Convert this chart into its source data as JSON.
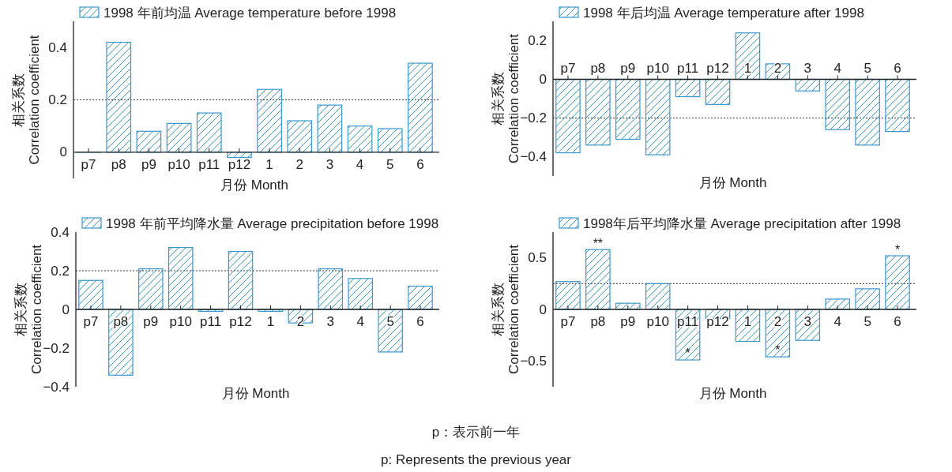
{
  "chart_data": [
    {
      "type": "bar",
      "ylabel": "相关系数\nCorrelation coefficient",
      "xlabel": "月份 Month",
      "categories": [
        "p7",
        "p8",
        "p9",
        "p10",
        "p11",
        "p12",
        "1",
        "2",
        "3",
        "4",
        "5",
        "6"
      ],
      "legend": "top",
      "ylim": [
        -0.1,
        0.5
      ],
      "yticks": [
        0,
        0.2,
        0.4
      ],
      "ref_lines": [
        {
          "axis": "y",
          "value": 0.2,
          "line_style": "dotted",
          "color": "#333333"
        }
      ],
      "series": [
        {
          "name": "1998 年前均温 Average temperature before 1998",
          "color": "#3a97cc",
          "values": [
            0,
            0.42,
            0.08,
            0.11,
            0.15,
            -0.02,
            0.24,
            0.12,
            0.18,
            0.1,
            0.09,
            0.34
          ]
        }
      ]
    },
    {
      "type": "bar",
      "ylabel": "相关系数\nCorrelation coefficient",
      "xlabel": "月份 Month",
      "categories": [
        "p7",
        "p8",
        "p9",
        "p10",
        "p11",
        "p12",
        "1",
        "2",
        "3",
        "4",
        "5",
        "6"
      ],
      "legend": "top",
      "ylim": [
        -0.5,
        0.3
      ],
      "yticks": [
        {
          "value": -0.4,
          "label": "−0.4"
        },
        {
          "value": -0.2,
          "label": "−0.2"
        },
        0,
        0.2
      ],
      "ref_lines": [
        {
          "axis": "y",
          "value": -0.2,
          "line_style": "dotted",
          "color": "#333333"
        }
      ],
      "series": [
        {
          "name": "1998 年后均温 Average temperature after 1998",
          "color": "#3a97cc",
          "values": [
            -0.38,
            -0.34,
            -0.31,
            -0.39,
            -0.09,
            -0.13,
            0.24,
            0.08,
            -0.06,
            -0.26,
            -0.34,
            -0.27
          ]
        }
      ]
    },
    {
      "type": "bar",
      "ylabel": "相关系数\nCorrelation coefficient",
      "xlabel": "月份 Month",
      "categories": [
        "p7",
        "p8",
        "p9",
        "p10",
        "p11",
        "p12",
        "1",
        "2",
        "3",
        "4",
        "5",
        "6"
      ],
      "legend": "top",
      "ylim": [
        -0.4,
        0.4
      ],
      "yticks": [
        {
          "value": -0.4,
          "label": "−0.4"
        },
        {
          "value": -0.2,
          "label": "−0.2"
        },
        0,
        0.2,
        0.4
      ],
      "ref_lines": [
        {
          "axis": "y",
          "value": 0.2,
          "line_style": "dotted",
          "color": "#333333"
        }
      ],
      "series": [
        {
          "name": "1998 年前平均降水量 Average precipitation before 1998",
          "color": "#3a97cc",
          "values": [
            0.15,
            -0.34,
            0.21,
            0.32,
            -0.01,
            0.3,
            -0.01,
            -0.07,
            0.21,
            0.16,
            -0.22,
            0.12
          ]
        }
      ]
    },
    {
      "type": "bar",
      "ylabel": "相关系数\nCorrelation coefficient",
      "xlabel": "月份 Month",
      "categories": [
        "p7",
        "p8",
        "p9",
        "p10",
        "p11",
        "p12",
        "1",
        "2",
        "3",
        "4",
        "5",
        "6"
      ],
      "legend": "top",
      "ylim": [
        -0.75,
        0.75
      ],
      "yticks": [
        {
          "value": -0.5,
          "label": "−0.5"
        },
        0,
        0.5
      ],
      "ref_lines": [
        {
          "axis": "y",
          "value": 0.25,
          "line_style": "dotted",
          "color": "#333333"
        }
      ],
      "annotations": [
        {
          "text": "**",
          "x": "p8",
          "y": 0.58
        },
        {
          "text": "*",
          "x": "p11",
          "y": -0.49
        },
        {
          "text": "*",
          "x": "2",
          "y": -0.46
        },
        {
          "text": "*",
          "x": "6",
          "y": 0.52
        }
      ],
      "series": [
        {
          "name": "1998年后平均降水量 Average precipitation after 1998",
          "color": "#3a97cc",
          "values": [
            0.27,
            0.58,
            0.06,
            0.25,
            -0.49,
            -0.09,
            -0.31,
            -0.46,
            -0.3,
            0.1,
            0.2,
            0.52
          ]
        }
      ]
    },
    {
      "type": "other",
      "annotations": [
        "p：表示前一年",
        "p: Represents the previous year"
      ]
    }
  ]
}
